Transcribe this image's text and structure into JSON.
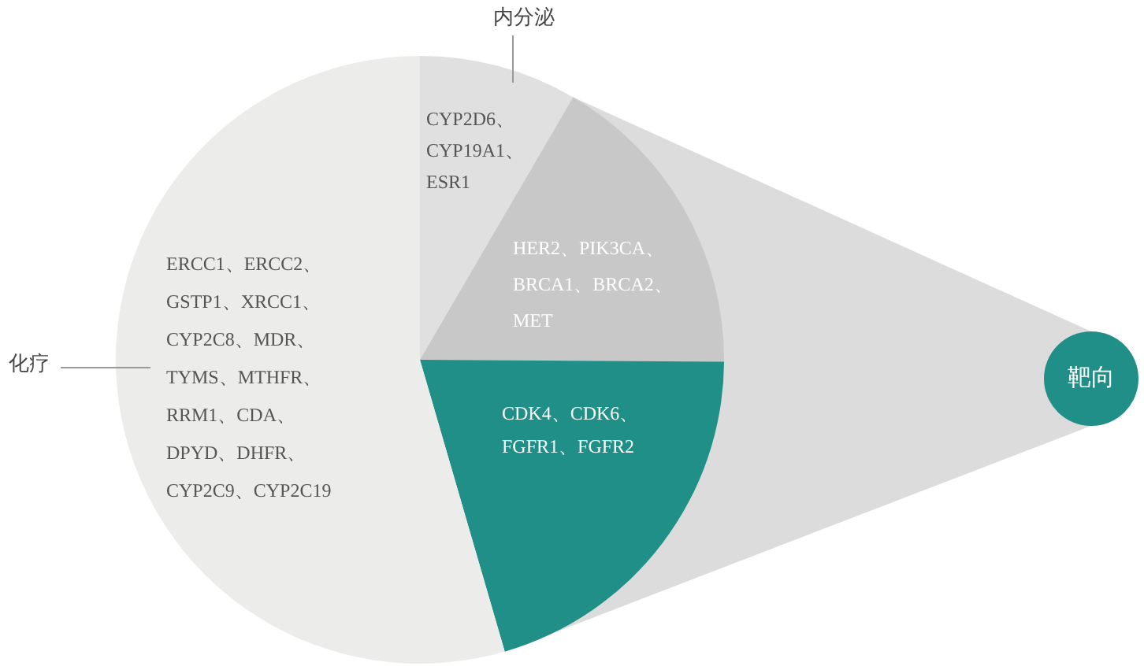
{
  "chart_data": {
    "type": "pie",
    "categories": [
      "CYP2D6、CYP19A1、ESR1",
      "HER2、PIK3CA、BRCA1、BRCA2、MET",
      "CDK4、CDK6、FGFR1、FGFR2",
      "ERCC1、ERCC2、GSTP1、XRCC1、CYP2C8、MDR、TYMS、MTHFR、RRM1、CDA、DPYD、DHFR、CYP2C9、CYP2C19"
    ],
    "values": [
      8.4,
      16.7,
      20.4,
      54.5
    ],
    "colors": [
      "#e0e0e0",
      "#c8c8c8",
      "#1f8f87",
      "#ececea"
    ],
    "annotations": [
      "内分泌",
      "靶向",
      "化疗"
    ]
  }
}
